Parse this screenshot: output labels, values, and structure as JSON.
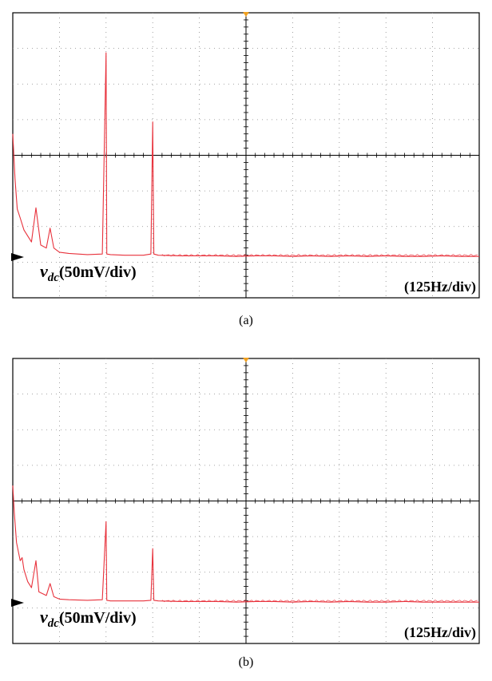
{
  "chart_data": [
    {
      "type": "line",
      "caption": "(a)",
      "channel_symbol": "v",
      "channel_subscript": "dc",
      "channel_scale": "(50mV/div)",
      "x_scale_label": "(125Hz/div)",
      "grid": true,
      "x_unit": "Hz",
      "xlim": [
        0,
        1250
      ],
      "y_unit": "mV",
      "ylim": [
        0,
        400
      ],
      "baseline_mV": 0,
      "series": [
        {
          "color": "#e8323c",
          "x": [
            0,
            6,
            12,
            20,
            30,
            40,
            50,
            62,
            75,
            90,
            100,
            110,
            125,
            150,
            200,
            240,
            250,
            252,
            262,
            300,
            350,
            370,
            375,
            378,
            390,
            450,
            500,
            550,
            600,
            650,
            700,
            750,
            800,
            850,
            900,
            950,
            1000,
            1050,
            1100,
            1150,
            1200,
            1250
          ],
          "y": [
            205,
            130,
            80,
            65,
            45,
            35,
            25,
            82,
            20,
            15,
            48,
            15,
            8,
            6,
            4,
            5,
            340,
            5,
            4,
            3,
            3,
            5,
            225,
            5,
            3,
            2,
            2,
            2,
            1,
            2,
            2,
            1,
            2,
            1,
            2,
            1,
            2,
            1,
            1,
            2,
            1,
            1
          ]
        }
      ]
    },
    {
      "type": "line",
      "caption": "(b)",
      "channel_symbol": "v",
      "channel_subscript": "dc",
      "channel_scale": "(50mV/div)",
      "x_scale_label": "(125Hz/div)",
      "grid": true,
      "x_unit": "Hz",
      "xlim": [
        0,
        1250
      ],
      "y_unit": "mV",
      "ylim": [
        0,
        400
      ],
      "baseline_mV": 0,
      "series": [
        {
          "color": "#e8323c",
          "x": [
            0,
            4,
            10,
            20,
            25,
            30,
            40,
            50,
            62,
            70,
            90,
            100,
            110,
            125,
            150,
            200,
            240,
            250,
            252,
            262,
            300,
            350,
            370,
            375,
            378,
            390,
            450,
            500,
            550,
            600,
            650,
            700,
            750,
            800,
            850,
            900,
            950,
            1000,
            1050,
            1100,
            1150,
            1200,
            1250
          ],
          "y": [
            195,
            150,
            100,
            70,
            75,
            55,
            35,
            25,
            70,
            18,
            12,
            32,
            10,
            6,
            5,
            4,
            5,
            135,
            4,
            3,
            3,
            3,
            4,
            90,
            4,
            3,
            2,
            2,
            2,
            1,
            2,
            2,
            1,
            2,
            1,
            2,
            1,
            1,
            2,
            1,
            1,
            1,
            1
          ]
        }
      ]
    }
  ]
}
